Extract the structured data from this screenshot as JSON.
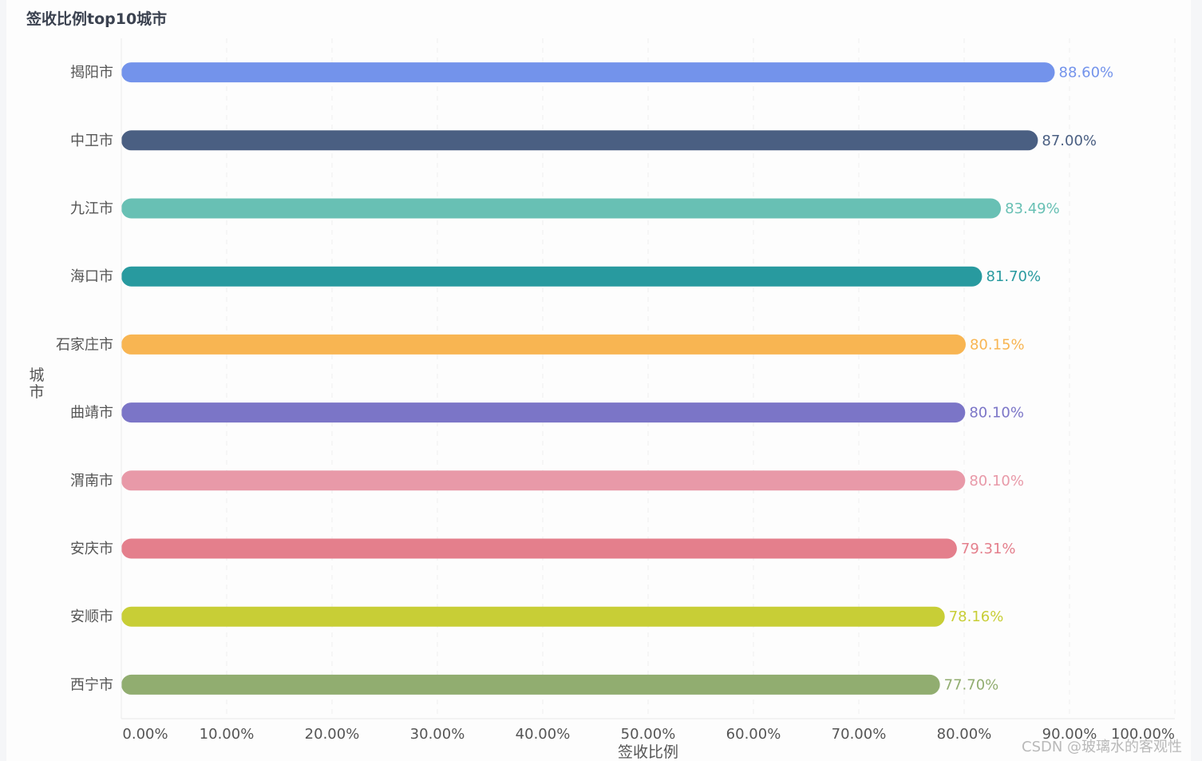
{
  "title": "签收比例top10城市",
  "watermark": "CSDN @玻璃水的客观性",
  "chart_data": {
    "type": "bar",
    "orientation": "horizontal",
    "title": "签收比例top10城市",
    "xlabel": "签收比例",
    "ylabel": "城市",
    "xlim": [
      0,
      100
    ],
    "x_ticks": [
      "0.00%",
      "10.00%",
      "20.00%",
      "30.00%",
      "40.00%",
      "50.00%",
      "60.00%",
      "70.00%",
      "80.00%",
      "90.00%",
      "100.00%"
    ],
    "grid": "vertical-dashed",
    "categories": [
      "揭阳市",
      "中卫市",
      "九江市",
      "海口市",
      "石家庄市",
      "曲靖市",
      "渭南市",
      "安庆市",
      "安顺市",
      "西宁市"
    ],
    "values": [
      88.6,
      87.0,
      83.49,
      81.7,
      80.15,
      80.1,
      80.1,
      79.31,
      78.16,
      77.7
    ],
    "value_labels": [
      "88.60%",
      "87.00%",
      "83.49%",
      "81.70%",
      "80.15%",
      "80.10%",
      "80.10%",
      "79.31%",
      "78.16%",
      "77.70%"
    ],
    "colors": [
      "#7393eb",
      "#4a5f82",
      "#68c0b4",
      "#289a9f",
      "#f8b552",
      "#7b75c7",
      "#e899a8",
      "#e47f8c",
      "#c8ce36",
      "#91ad70"
    ]
  }
}
